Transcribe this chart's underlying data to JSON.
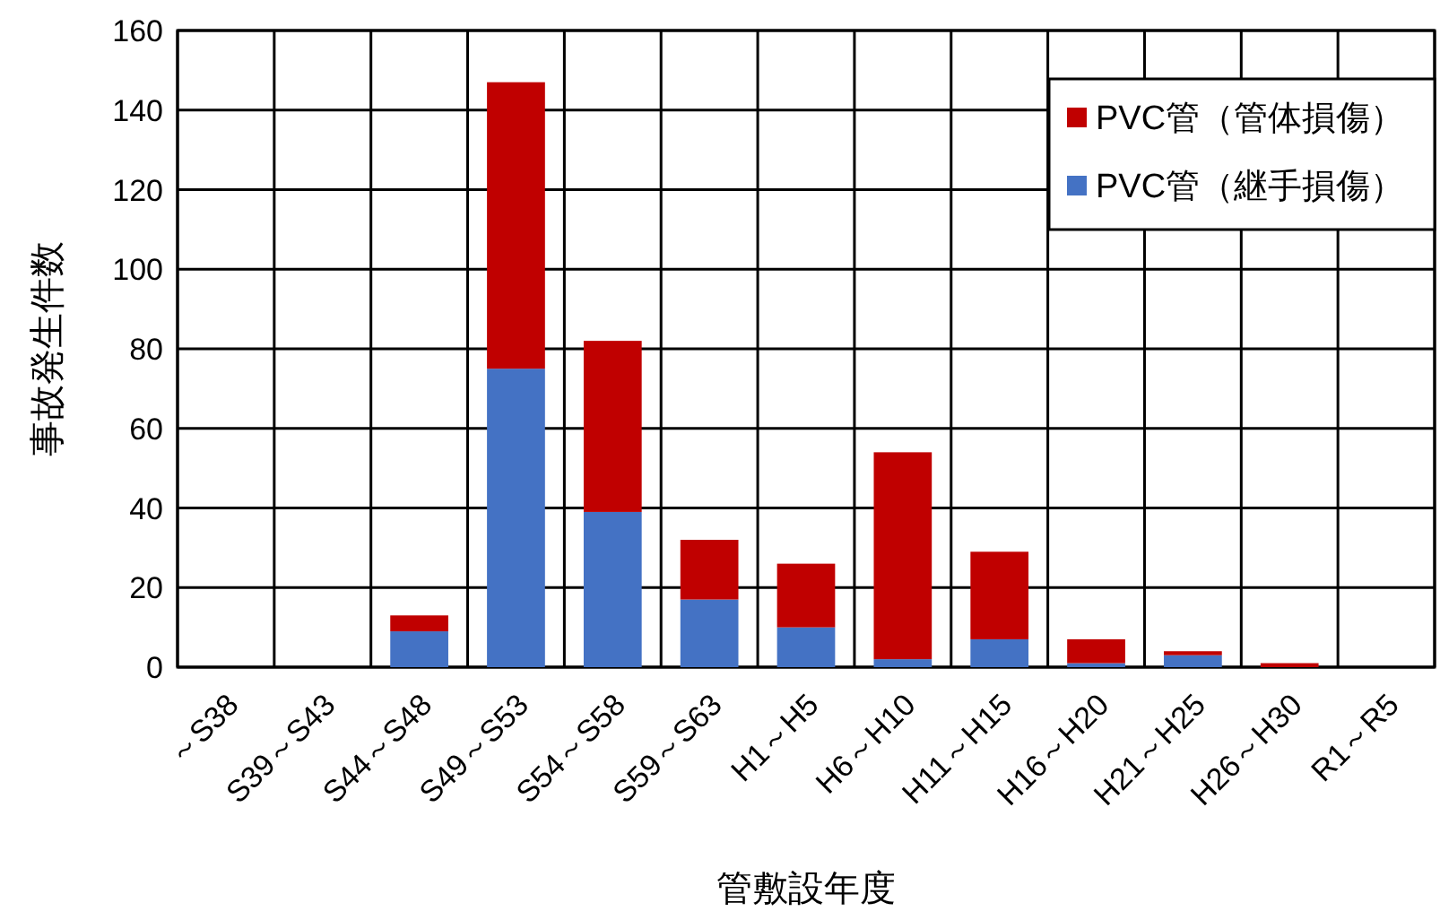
{
  "chart_data": {
    "type": "bar",
    "stacked": true,
    "xlabel": "管敷設年度",
    "ylabel": "事故発生件数",
    "categories": [
      "～S38",
      "S39～S43",
      "S44～S48",
      "S49～S53",
      "S54～S58",
      "S59～S63",
      "H1～H5",
      "H6～H10",
      "H11～H15",
      "H16～H20",
      "H21～H25",
      "H26～H30",
      "R1～R5"
    ],
    "series": [
      {
        "name": "PVC管（継手損傷）",
        "color": "#4472c4",
        "values": [
          0,
          0,
          9,
          75,
          39,
          17,
          10,
          2,
          7,
          1,
          3,
          0,
          0
        ]
      },
      {
        "name": "PVC管（管体損傷）",
        "color": "#c00000",
        "values": [
          0,
          0,
          4,
          72,
          43,
          15,
          16,
          52,
          22,
          6,
          1,
          1,
          0
        ]
      }
    ],
    "ylim": [
      0,
      160
    ],
    "yticks": [
      0,
      20,
      40,
      60,
      80,
      100,
      120,
      140,
      160
    ],
    "grid": true,
    "legend": "top right"
  }
}
